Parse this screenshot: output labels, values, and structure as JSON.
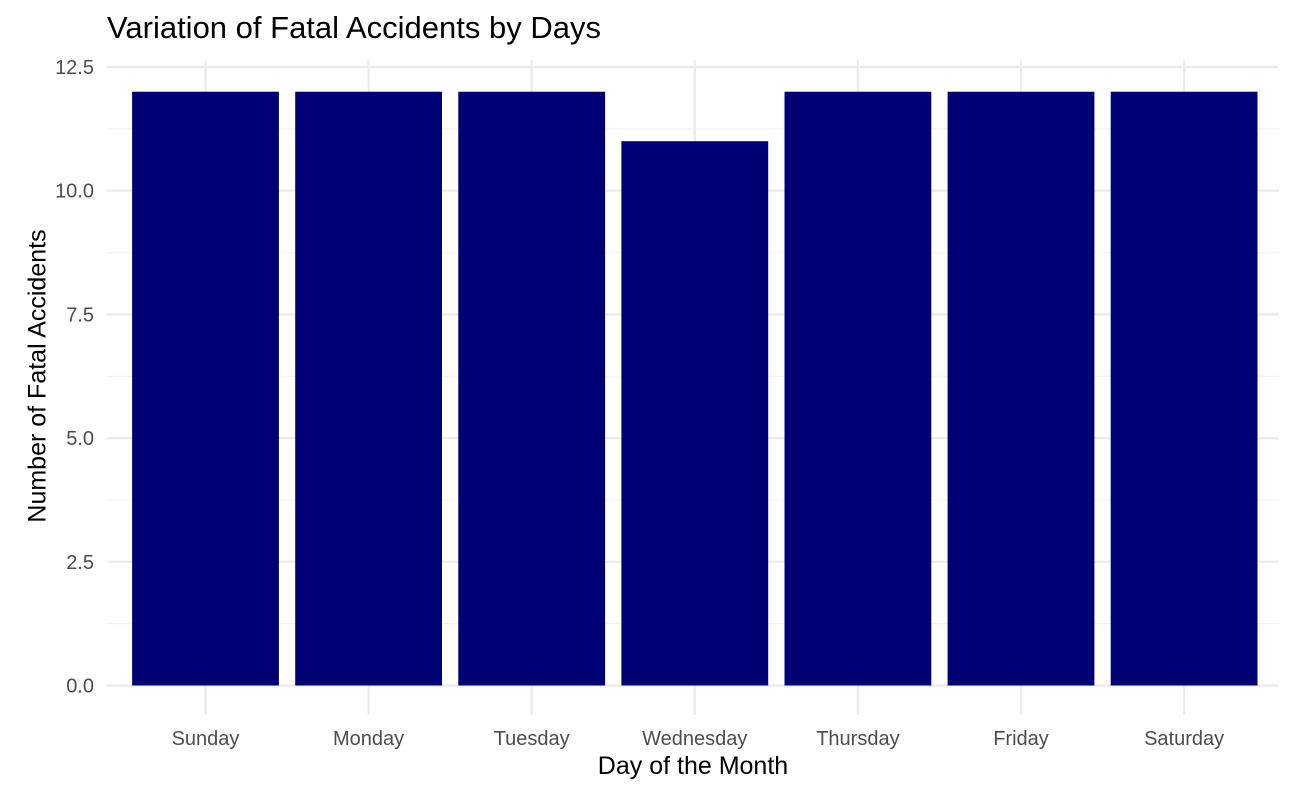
{
  "chart_data": {
    "type": "bar",
    "title": "Variation of Fatal Accidents by Days",
    "xlabel": "Day of the Month",
    "ylabel": "Number of Fatal Accidents",
    "categories": [
      "Sunday",
      "Monday",
      "Tuesday",
      "Wednesday",
      "Thursday",
      "Friday",
      "Saturday"
    ],
    "values": [
      12,
      12,
      12,
      11,
      12,
      12,
      12
    ],
    "ylim": [
      0,
      12.5
    ],
    "yticks": [
      0,
      2.5,
      5,
      7.5,
      10,
      12.5
    ],
    "ytick_labels": [
      "0.0",
      "2.5",
      "5.0",
      "7.5",
      "10.0",
      "12.5"
    ],
    "grid": true,
    "legend": "none",
    "colors": {
      "bar": "#000075",
      "grid_major": "#ebebeb",
      "grid_minor": "#f4f4f4",
      "tick_text": "#4d4d4d"
    }
  }
}
